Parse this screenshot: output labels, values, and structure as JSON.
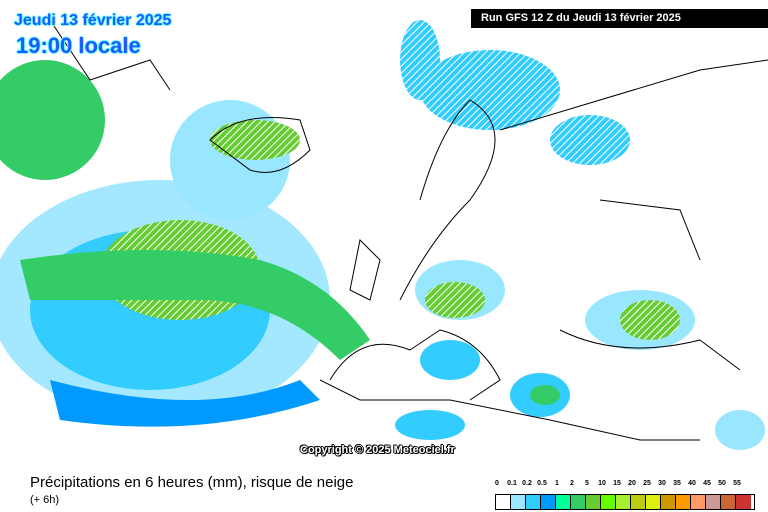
{
  "header": {
    "date": "Jeudi 13 février 2025",
    "time": "19:00 locale",
    "run": "Run GFS 12 Z du Jeudi 13 février 2025"
  },
  "map": {
    "copyright": "Copyright © 2025 Meteociel.fr",
    "snow_risk_pattern": "diagonal-hatch"
  },
  "footer": {
    "title": "Précipitations en 6 heures (mm), risque de neige",
    "subtitle": "(+ 6h)"
  },
  "legend": {
    "unit": "mm",
    "ticks": [
      "0",
      "0.1",
      "0.2",
      "0.5",
      "1",
      "2",
      "5",
      "10",
      "15",
      "20",
      "25",
      "30",
      "35",
      "40",
      "45",
      "50",
      "55"
    ],
    "colors": [
      "#ffffff",
      "#99e6ff",
      "#33ccff",
      "#0099ff",
      "#00ff99",
      "#33cc66",
      "#66cc33",
      "#66ff00",
      "#aaee33",
      "#bbcc11",
      "#ddee11",
      "#cc9900",
      "#ff9900",
      "#ff9966",
      "#cc9999",
      "#cc6633",
      "#cc3333"
    ]
  }
}
